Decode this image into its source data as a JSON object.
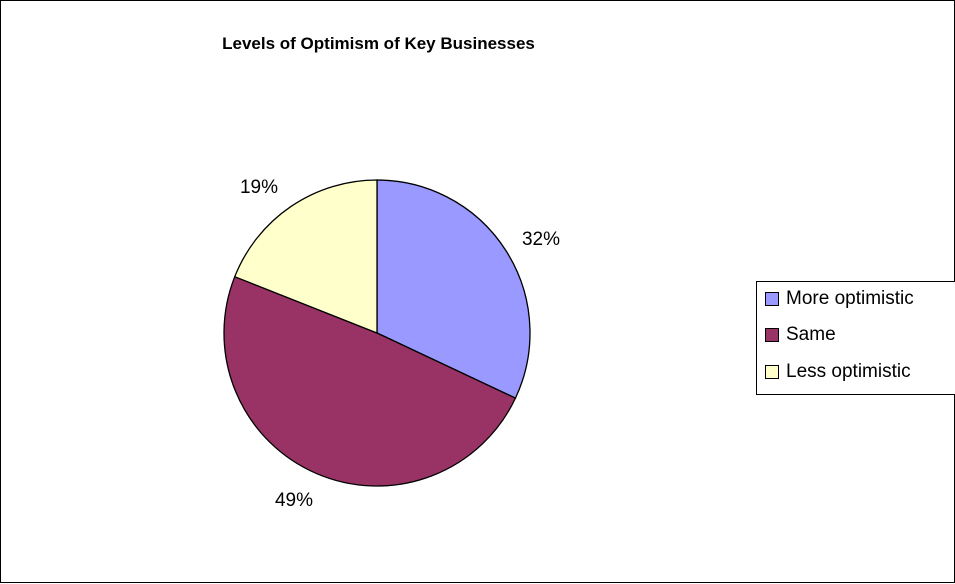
{
  "chart_data": {
    "type": "pie",
    "title": "Levels of Optimism of Key Businesses",
    "categories": [
      "More optimistic",
      "Same",
      "Less optimistic"
    ],
    "values": [
      32,
      49,
      19
    ],
    "labels": [
      "32%",
      "49%",
      "19%"
    ],
    "colors": [
      "#9999FF",
      "#993366",
      "#FFFFCC"
    ],
    "legend_position": "right"
  }
}
